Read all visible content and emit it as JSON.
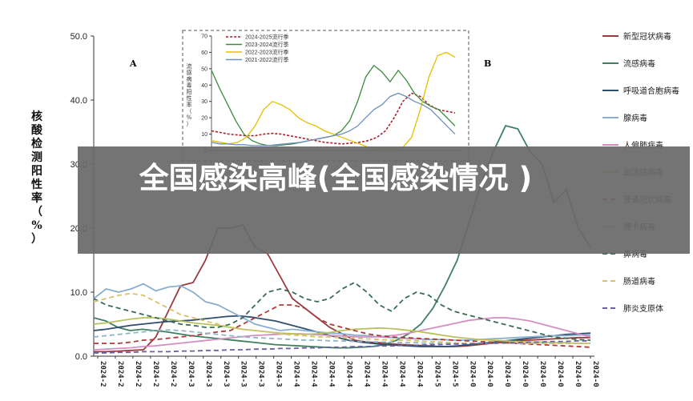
{
  "banner": {
    "title": "全国感染高峰(全国感染情况 )"
  },
  "chart_data": [
    {
      "type": "line",
      "panel_label": "A",
      "ylabel": "核酸检测阳性率（%）",
      "ylim": [
        0,
        50
      ],
      "yticks": [
        "0.0",
        "10.0",
        "20.0",
        "30.0",
        "40.0",
        "50.0"
      ],
      "xtick_labels": [
        "2024-2",
        "2024-2",
        "2024-2",
        "2024-2",
        "2024-2",
        "2024-3",
        "2024-3",
        "2024-3",
        "2024-3",
        "2024-3",
        "2024-3",
        "2024-4",
        "2024-4",
        "2024-4",
        "2024-4",
        "2024-4",
        "2024-4",
        "2024-4",
        "2024-4",
        "2024-5",
        "2024-5",
        "2024-0",
        "2024-0",
        "2024-0",
        "2024-0",
        "2024-0",
        "2024-0",
        "2024-0",
        "2024-0"
      ],
      "series": [
        {
          "name": "新型冠状病毒",
          "color": "#9b3a3a",
          "dash": "solid",
          "values": [
            0.7,
            0.7,
            0.8,
            0.9,
            1,
            3,
            7,
            11,
            11.5,
            15,
            20,
            20,
            20.5,
            17,
            16,
            12.5,
            9,
            7.5,
            6,
            4.5,
            3.5,
            2.5,
            2.2,
            2.1,
            1.9,
            1.8,
            1.7,
            1.6,
            1.5,
            1.5,
            1.6,
            1.8,
            2,
            2.2,
            2.4,
            2.5,
            2.6,
            2.7,
            2.8,
            2.9,
            2.9
          ]
        },
        {
          "name": "流感病毒",
          "color": "#3f7f60",
          "dash": "solid",
          "values": [
            6,
            5.5,
            4.5,
            4,
            4.2,
            4,
            3.8,
            3.5,
            3.2,
            3,
            2.8,
            2.6,
            2.4,
            2.2,
            2,
            1.8,
            1.7,
            1.6,
            1.5,
            1.4,
            1.3,
            1.3,
            1.4,
            1.5,
            1.8,
            2.5,
            3.5,
            5,
            7.5,
            11,
            15,
            21,
            27,
            32,
            36,
            35.5,
            32,
            30,
            24,
            26,
            20,
            17
          ]
        },
        {
          "name": "呼吸道合胞病毒",
          "color": "#2f4f6f",
          "dash": "solid",
          "values": [
            4,
            4.2,
            4.5,
            4.8,
            5,
            5.2,
            5.4,
            5.5,
            5.6,
            5.8,
            6,
            6.2,
            6.3,
            6.1,
            5.8,
            5.5,
            5,
            4.5,
            4,
            3.5,
            3,
            2.5,
            2.2,
            2,
            1.8,
            1.7,
            1.6,
            1.5,
            1.5,
            1.5,
            1.6,
            1.8,
            2,
            2.2,
            2.4,
            2.6,
            2.8,
            3,
            3.2,
            3.4,
            3.5,
            3.6
          ]
        },
        {
          "name": "腺病毒",
          "color": "#8aaed0",
          "dash": "solid",
          "values": [
            9,
            10.5,
            10,
            10.5,
            11.3,
            10.2,
            10.8,
            11,
            10,
            8.5,
            8,
            7,
            6,
            5,
            4.5,
            4,
            4.2,
            4,
            3.8,
            3.6,
            3.5,
            3.3,
            3.2,
            3,
            2.9,
            2.8,
            2.7,
            2.6,
            2.6,
            2.5,
            2.5,
            2.6,
            2.7,
            2.8,
            2.9,
            3,
            3.1,
            3.2,
            3.2,
            3.3,
            3.3
          ]
        },
        {
          "name": "人偏肺病毒",
          "color": "#d48fc0",
          "dash": "solid",
          "values": [
            1,
            1.1,
            1.2,
            1.3,
            1.5,
            1.6,
            1.8,
            2,
            2.2,
            2.4,
            2.6,
            2.8,
            3,
            3.2,
            3.3,
            3.4,
            3.5,
            3.5,
            3.4,
            3.3,
            3.2,
            3.1,
            3,
            3,
            3.1,
            3.3,
            3.6,
            4,
            4.4,
            4.8,
            5.2,
            5.6,
            5.8,
            6,
            6,
            5.8,
            5.5,
            5,
            4.5,
            4,
            3.5,
            3
          ]
        },
        {
          "name": "副流感病毒",
          "color": "#b9c25a",
          "dash": "solid",
          "values": [
            5,
            5.2,
            5.5,
            5.8,
            6,
            6,
            5.8,
            5.5,
            5.2,
            5,
            4.8,
            4.5,
            4.2,
            4,
            3.8,
            3.6,
            3.5,
            3.4,
            3.5,
            3.7,
            4,
            4.2,
            4.3,
            4.4,
            4.3,
            4.1,
            3.9,
            3.6,
            3.3,
            3,
            2.8,
            2.6,
            2.5,
            2.4,
            2.3,
            2.2,
            2.2,
            2.1,
            2.1,
            2,
            2
          ]
        },
        {
          "name": "普通冠状病毒",
          "color": "#b03a3a",
          "dash": "dashed",
          "values": [
            2,
            2,
            2,
            2.2,
            2.5,
            2.6,
            2.8,
            3,
            3.2,
            3.5,
            3.8,
            4,
            5,
            6,
            7,
            8,
            8,
            7.5,
            6,
            5,
            4.5,
            4,
            3.5,
            3.2,
            3,
            2.9,
            2.8,
            2.7,
            2.6,
            2.5,
            2.4,
            2.3,
            2.2,
            2.1,
            2,
            1.9,
            1.8,
            1.7,
            1.6,
            1.5,
            1.4
          ]
        },
        {
          "name": "博卡病毒",
          "color": "#8fb5c9",
          "dash": "dashed",
          "values": [
            3,
            3.2,
            3.4,
            3.6,
            3.8,
            4,
            4.1,
            4,
            3.8,
            3.6,
            3.4,
            3.2,
            3,
            2.9,
            2.8,
            2.7,
            2.6,
            2.5,
            2.5,
            2.4,
            2.4,
            2.3,
            2.3,
            2.2,
            2.2,
            2.1,
            2.1,
            2,
            2,
            2,
            2,
            2,
            2,
            2,
            2,
            2,
            2,
            2,
            2,
            2,
            2
          ]
        },
        {
          "name": "鼻病毒",
          "color": "#3a6b55",
          "dash": "dashed",
          "values": [
            9,
            8,
            7.5,
            7,
            6.5,
            6,
            5.5,
            5,
            4.8,
            4.5,
            4.5,
            5,
            6,
            8,
            10,
            10.5,
            10,
            9,
            8.5,
            9,
            10.5,
            11.5,
            10,
            8,
            7,
            9,
            10,
            9.5,
            8,
            7,
            6.5,
            6,
            5.5,
            5,
            4.5,
            4,
            3.5,
            3,
            2.8,
            2.6,
            2.5
          ]
        },
        {
          "name": "肠道病毒",
          "color": "#d7c06a",
          "dash": "dashed",
          "values": [
            8.5,
            9,
            9.5,
            9.8,
            9.5,
            8.5,
            7.5,
            6.5,
            6,
            5.5,
            5,
            4.5,
            4.2,
            4,
            3.8,
            3.5,
            3.3,
            3.2,
            3,
            3,
            2.9,
            2.8,
            2.7,
            2.6,
            2.5,
            2.5,
            2.4,
            2.3,
            2.2,
            2.1,
            2,
            2,
            2,
            2,
            2,
            2,
            2,
            2,
            2,
            2,
            2
          ]
        },
        {
          "name": "肺炎支原体",
          "color": "#6a5fa0",
          "dash": "dashed",
          "values": [
            0.5,
            0.5,
            0.6,
            0.6,
            0.7,
            0.7,
            0.7,
            0.8,
            0.8,
            0.9,
            0.9,
            1,
            1,
            1.1,
            1.1,
            1.2,
            1.2,
            1.3,
            1.3,
            1.4,
            1.4,
            1.5,
            1.5,
            1.6,
            1.6,
            1.7,
            1.7,
            1.8,
            1.8,
            1.9,
            1.9,
            2,
            2,
            2.1,
            2.1,
            2.2,
            2.2,
            2.3,
            2.3,
            2.4,
            2.4
          ]
        }
      ]
    },
    {
      "type": "line",
      "panel_label": "B",
      "ylabel": "流感病毒阳性率（%）",
      "ylim": [
        0,
        70
      ],
      "yticks": [
        "0",
        "10",
        "20",
        "30",
        "40",
        "50",
        "60",
        "70"
      ],
      "series": [
        {
          "name": "2024-2025流行季",
          "color": "#b01e2a",
          "dash": "dashed",
          "values": [
            12,
            11,
            10,
            9.5,
            9,
            9,
            10,
            10.5,
            10,
            9,
            8,
            7,
            6,
            5,
            4.5,
            4,
            4.5,
            5,
            6,
            8,
            12,
            20,
            30,
            35,
            33,
            28,
            25,
            24,
            23
          ]
        },
        {
          "name": "2023-2024流行季",
          "color": "#3a8a3a",
          "dash": "solid",
          "values": [
            49,
            38,
            28,
            18,
            10,
            6,
            4,
            3,
            3,
            3.5,
            4,
            5,
            6,
            7,
            8,
            9,
            12,
            18,
            30,
            45,
            52,
            48,
            42,
            49,
            43,
            35,
            30,
            27,
            25,
            20,
            15
          ]
        },
        {
          "name": "2022-2023流行季",
          "color": "#e3c000",
          "dash": "solid",
          "values": [
            6,
            5,
            4,
            5,
            8,
            15,
            25,
            30,
            28,
            25,
            20,
            17,
            15,
            12,
            10,
            8,
            6,
            4,
            2,
            1,
            1,
            1,
            2,
            8,
            25,
            45,
            58,
            60,
            57
          ]
        },
        {
          "name": "2021-2022流行季",
          "color": "#6f8fc0",
          "dash": "solid",
          "values": [
            5,
            4,
            4,
            3.5,
            3.5,
            3,
            3,
            3,
            3.5,
            4,
            4.5,
            5,
            6,
            7,
            8,
            9,
            10,
            12,
            15,
            20,
            25,
            28,
            33,
            35,
            33,
            30,
            28,
            25,
            20,
            15,
            10
          ]
        }
      ]
    }
  ]
}
